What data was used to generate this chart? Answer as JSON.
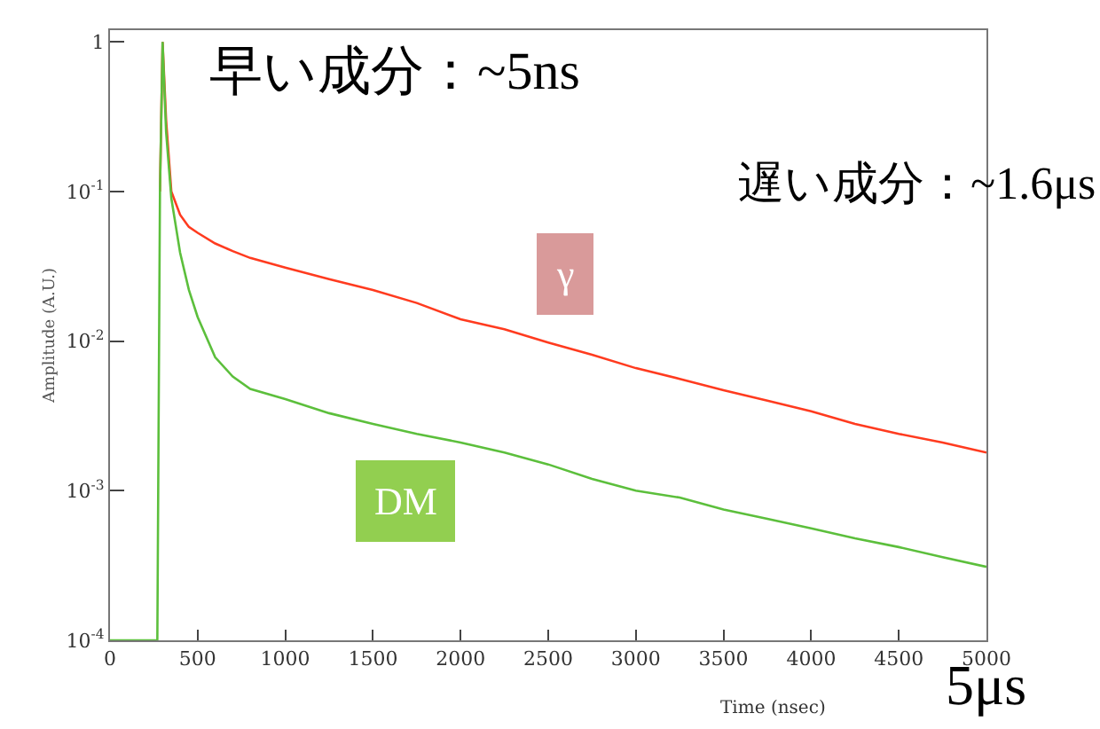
{
  "chart_data": {
    "type": "line",
    "xlabel": "Time (nsec)",
    "ylabel": "Amplitude (A.U.)",
    "annotations": [
      "早い成分：~5ns",
      "遅い成分：~1.6μs",
      "5μs"
    ],
    "x": [
      0,
      270,
      285,
      300,
      320,
      350,
      400,
      450,
      500,
      600,
      700,
      800,
      1000,
      1250,
      1500,
      1750,
      2000,
      2250,
      2500,
      2750,
      3000,
      3250,
      3500,
      3750,
      4000,
      4250,
      4500,
      4750,
      5000
    ],
    "series": [
      {
        "name": "γ",
        "color": "#ff3b1f",
        "values": [
          null,
          null,
          0.1,
          1,
          0.3,
          0.1,
          0.07,
          0.058,
          0.053,
          0.045,
          0.04,
          0.036,
          0.031,
          0.026,
          0.022,
          0.018,
          0.014,
          0.012,
          0.0098,
          0.0081,
          0.0066,
          0.0056,
          0.0047,
          0.004,
          0.0034,
          0.0028,
          0.0024,
          0.0021,
          0.0018
        ]
      },
      {
        "name": "DM",
        "color": "#5cbf3c",
        "values": [
          0.0001,
          0.0001,
          0.1,
          1,
          0.25,
          0.09,
          0.039,
          0.022,
          0.0145,
          0.0078,
          0.0058,
          0.0048,
          0.0041,
          0.0033,
          0.0028,
          0.0024,
          0.0021,
          0.0018,
          0.0015,
          0.0012,
          0.001,
          0.0009,
          0.00075,
          0.00065,
          0.00056,
          0.00048,
          0.00042,
          0.00036,
          0.00031
        ]
      }
    ],
    "xlim": [
      0,
      5000
    ],
    "xticks": [
      0,
      500,
      1000,
      1500,
      2000,
      2500,
      3000,
      3500,
      4000,
      4500,
      5000
    ],
    "ylim": [
      0.0001,
      1.2
    ],
    "log": true,
    "yticks": [
      {
        "value": 0.0001,
        "label": "10$^{-4}$"
      },
      {
        "value": 0.001,
        "label": "10$^{-3}$"
      },
      {
        "value": 0.01,
        "label": "10$^{-2}$"
      },
      {
        "value": 0.1,
        "label": "10$^{-1}$"
      },
      1
    ],
    "grid": false,
    "legend": false,
    "marker": "none",
    "line_style": "solid"
  }
}
